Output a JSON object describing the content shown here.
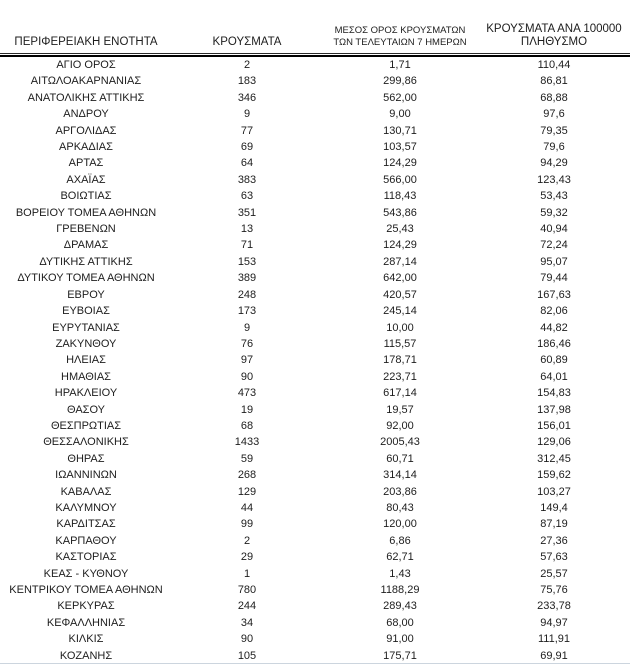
{
  "page": {
    "background_color": "#ffffff",
    "text_color": "#1d1d1d",
    "divider_color": "#000000",
    "bottom_line_color": "#ccd5de"
  },
  "table": {
    "headers": [
      {
        "label": "ΠΕΡΙΦΕΡΕΙΑΚΗ ΕΝΟΤΗΤΑ"
      },
      {
        "label": "ΚΡΟΥΣΜΑΤΑ"
      },
      {
        "line1": "ΜΕΣΟΣ ΟΡΟΣ ΚΡΟΥΣΜΑΤΩΝ",
        "line2": "ΤΩΝ ΤΕΛΕΥΤΑΙΩΝ 7 ΗΜΕΡΩΝ"
      },
      {
        "line1": "ΚΡΟΥΣΜΑΤΑ ΑΝΑ 100000",
        "line2": "ΠΛΗΘΥΣΜΟ"
      }
    ],
    "rows": [
      [
        "ΑΓΙΟ ΟΡΟΣ",
        "2",
        "1,71",
        "110,44"
      ],
      [
        "ΑΙΤΩΛΟΑΚΑΡΝΑΝΙΑΣ",
        "183",
        "299,86",
        "86,81"
      ],
      [
        "ΑΝΑΤΟΛΙΚΗΣ ΑΤΤΙΚΗΣ",
        "346",
        "562,00",
        "68,88"
      ],
      [
        "ΑΝΔΡΟΥ",
        "9",
        "9,00",
        "97,6"
      ],
      [
        "ΑΡΓΟΛΙΔΑΣ",
        "77",
        "130,71",
        "79,35"
      ],
      [
        "ΑΡΚΑΔΙΑΣ",
        "69",
        "103,57",
        "79,6"
      ],
      [
        "ΑΡΤΑΣ",
        "64",
        "124,29",
        "94,29"
      ],
      [
        "ΑΧΑΪΑΣ",
        "383",
        "566,00",
        "123,43"
      ],
      [
        "ΒΟΙΩΤΙΑΣ",
        "63",
        "118,43",
        "53,43"
      ],
      [
        "ΒΟΡΕΙΟΥ ΤΟΜΕΑ ΑΘΗΝΩΝ",
        "351",
        "543,86",
        "59,32"
      ],
      [
        "ΓΡΕΒΕΝΩΝ",
        "13",
        "25,43",
        "40,94"
      ],
      [
        "ΔΡΑΜΑΣ",
        "71",
        "124,29",
        "72,24"
      ],
      [
        "ΔΥΤΙΚΗΣ ΑΤΤΙΚΗΣ",
        "153",
        "287,14",
        "95,07"
      ],
      [
        "ΔΥΤΙΚΟΥ ΤΟΜΕΑ ΑΘΗΝΩΝ",
        "389",
        "642,00",
        "79,44"
      ],
      [
        "ΕΒΡΟΥ",
        "248",
        "420,57",
        "167,63"
      ],
      [
        "ΕΥΒΟΙΑΣ",
        "173",
        "245,14",
        "82,06"
      ],
      [
        "ΕΥΡΥΤΑΝΙΑΣ",
        "9",
        "10,00",
        "44,82"
      ],
      [
        "ΖΑΚΥΝΘΟΥ",
        "76",
        "115,57",
        "186,46"
      ],
      [
        "ΗΛΕΙΑΣ",
        "97",
        "178,71",
        "60,89"
      ],
      [
        "ΗΜΑΘΙΑΣ",
        "90",
        "223,71",
        "64,01"
      ],
      [
        "ΗΡΑΚΛΕΙΟΥ",
        "473",
        "617,14",
        "154,83"
      ],
      [
        "ΘΑΣΟΥ",
        "19",
        "19,57",
        "137,98"
      ],
      [
        "ΘΕΣΠΡΩΤΙΑΣ",
        "68",
        "92,00",
        "156,01"
      ],
      [
        "ΘΕΣΣΑΛΟΝΙΚΗΣ",
        "1433",
        "2005,43",
        "129,06"
      ],
      [
        "ΘΗΡΑΣ",
        "59",
        "60,71",
        "312,45"
      ],
      [
        "ΙΩΑΝΝΙΝΩΝ",
        "268",
        "314,14",
        "159,62"
      ],
      [
        "ΚΑΒΑΛΑΣ",
        "129",
        "203,86",
        "103,27"
      ],
      [
        "ΚΑΛΥΜΝΟΥ",
        "44",
        "80,43",
        "149,4"
      ],
      [
        "ΚΑΡΔΙΤΣΑΣ",
        "99",
        "120,00",
        "87,19"
      ],
      [
        "ΚΑΡΠΑΘΟΥ",
        "2",
        "6,86",
        "27,36"
      ],
      [
        "ΚΑΣΤΟΡΙΑΣ",
        "29",
        "62,71",
        "57,63"
      ],
      [
        "ΚΕΑΣ - ΚΥΘΝΟΥ",
        "1",
        "1,43",
        "25,57"
      ],
      [
        "ΚΕΝΤΡΙΚΟΥ ΤΟΜΕΑ ΑΘΗΝΩΝ",
        "780",
        "1188,29",
        "75,76"
      ],
      [
        "ΚΕΡΚΥΡΑΣ",
        "244",
        "289,43",
        "233,78"
      ],
      [
        "ΚΕΦΑΛΛΗΝΙΑΣ",
        "34",
        "68,00",
        "94,97"
      ],
      [
        "ΚΙΛΚΙΣ",
        "90",
        "91,00",
        "111,91"
      ],
      [
        "ΚΟΖΑΝΗΣ",
        "105",
        "175,71",
        "69,91"
      ]
    ]
  }
}
